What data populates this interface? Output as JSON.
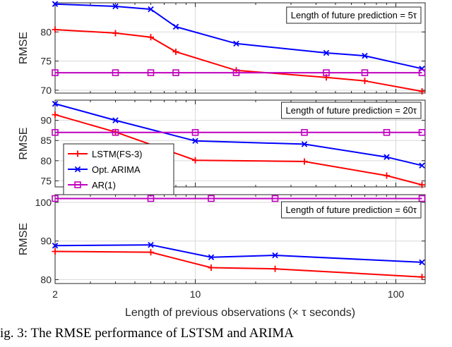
{
  "caption": "ig. 3: The RMSE performance of LSTSM and ARIMA",
  "colors": {
    "lstm": "#ff0000",
    "arima": "#0000ff",
    "ar": "#bf00bf",
    "axis": "#262626",
    "grid": "#d9d9d9"
  },
  "chart_data": {
    "type": "line",
    "xscale": "log",
    "xlabel": "Length of previous observations (× τ seconds)",
    "xlim": [
      2,
      140
    ],
    "xticks": [
      2,
      10,
      100
    ],
    "xtick_labels": [
      "2",
      "10",
      "100"
    ],
    "legend": {
      "placement": "middle-left",
      "entries": [
        "LSTM(FS-3)",
        "Opt. ARIMA",
        "AR(1)"
      ]
    },
    "panels": [
      {
        "ylabel": "RMSE",
        "annotation": "Length of future prediction = 5τ",
        "ylim": [
          69.5,
          85
        ],
        "yticks": [
          70,
          75,
          80
        ],
        "grid": true,
        "series": [
          {
            "name": "LSTM(FS-3)",
            "x": [
              2,
              4,
              6,
              8,
              16,
              45,
              70,
              135
            ],
            "y": [
              80.4,
              79.8,
              79.1,
              76.6,
              73.4,
              72.2,
              71.6,
              69.8
            ]
          },
          {
            "name": "Opt. ARIMA",
            "x": [
              2,
              4,
              6,
              8,
              16,
              45,
              70,
              135
            ],
            "y": [
              84.8,
              84.4,
              83.9,
              80.9,
              78.0,
              76.4,
              75.9,
              73.7
            ]
          },
          {
            "name": "AR(1)",
            "x": [
              2,
              4,
              6,
              8,
              16,
              45,
              70,
              135
            ],
            "y": [
              73.0,
              73.0,
              73.0,
              73.0,
              73.0,
              73.0,
              73.0,
              73.0
            ]
          }
        ]
      },
      {
        "ylabel": "RMSE",
        "annotation": "Length of future prediction = 20τ",
        "ylim": [
          73.5,
          95
        ],
        "yticks": [
          75,
          80,
          85,
          90
        ],
        "grid": true,
        "series": [
          {
            "name": "LSTM(FS-3)",
            "x": [
              2,
              4,
              10,
              35,
              90,
              135
            ],
            "y": [
              91.4,
              87.1,
              80.1,
              79.8,
              76.3,
              74.0
            ]
          },
          {
            "name": "Opt. ARIMA",
            "x": [
              2,
              4,
              10,
              35,
              90,
              135
            ],
            "y": [
              94.1,
              90.0,
              84.9,
              84.1,
              80.9,
              78.8
            ]
          },
          {
            "name": "AR(1)",
            "x": [
              2,
              4,
              10,
              35,
              90,
              135
            ],
            "y": [
              87.0,
              87.0,
              87.0,
              87.0,
              87.0,
              87.0
            ]
          }
        ]
      },
      {
        "ylabel": "RMSE",
        "annotation": "Length of future prediction = 60τ",
        "ylim": [
          79,
          102
        ],
        "yticks": [
          80,
          90,
          100
        ],
        "grid": true,
        "series": [
          {
            "name": "LSTM(FS-3)",
            "x": [
              2,
              6,
              12,
              25,
              135
            ],
            "y": [
              87.3,
              87.1,
              83.1,
              82.8,
              80.7
            ]
          },
          {
            "name": "Opt. ARIMA",
            "x": [
              2,
              6,
              12,
              25,
              135
            ],
            "y": [
              88.8,
              89.0,
              85.8,
              86.3,
              84.5
            ]
          },
          {
            "name": "AR(1)",
            "x": [
              2,
              6,
              12,
              25,
              135
            ],
            "y": [
              101.0,
              101.0,
              101.0,
              101.0,
              101.0
            ]
          }
        ]
      }
    ]
  }
}
